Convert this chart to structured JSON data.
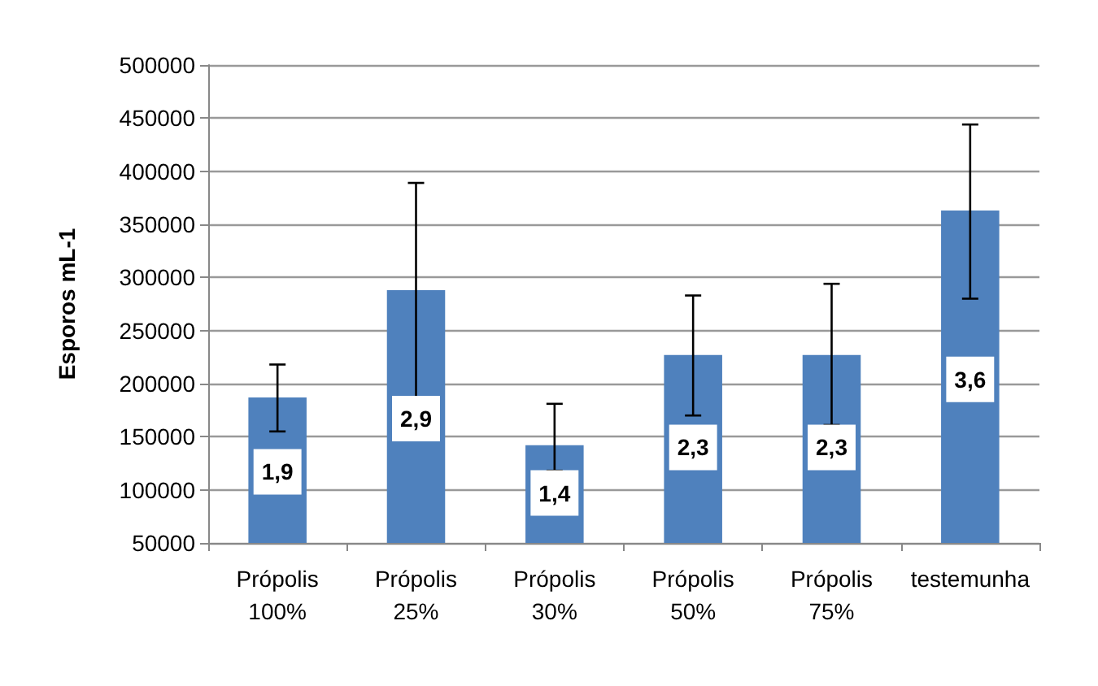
{
  "chart_data": {
    "type": "bar",
    "ylabel": "Esporos mL-1",
    "categories": [
      "Própolis\n100%",
      "Própolis\n25%",
      "Própolis\n30%",
      "Própolis\n50%",
      "Própolis\n75%",
      "testemunha"
    ],
    "values": [
      187000,
      288000,
      142000,
      227000,
      227000,
      363000
    ],
    "errors": [
      [
        155000,
        218000
      ],
      [
        185000,
        389000
      ],
      [
        118000,
        181000
      ],
      [
        170000,
        283000
      ],
      [
        161000,
        294000
      ],
      [
        280000,
        444000
      ]
    ],
    "annotations": [
      {
        "text": "1,9",
        "x": "Própolis\n100%",
        "y": 117000
      },
      {
        "text": "2,9",
        "x": "Própolis\n25%",
        "y": 167000
      },
      {
        "text": "1,4",
        "x": "Própolis\n30%",
        "y": 97000
      },
      {
        "text": "2,3",
        "x": "Própolis\n50%",
        "y": 140000
      },
      {
        "text": "2,3",
        "x": "Própolis\n75%",
        "y": 140000
      },
      {
        "text": "3,6",
        "x": "testemunha",
        "y": 204000
      }
    ],
    "color": "#4f81bd",
    "ylim": [
      50000,
      500000
    ],
    "yticks": [
      50000,
      100000,
      150000,
      200000,
      250000,
      300000,
      350000,
      400000,
      450000,
      500000
    ],
    "grid": "y"
  }
}
